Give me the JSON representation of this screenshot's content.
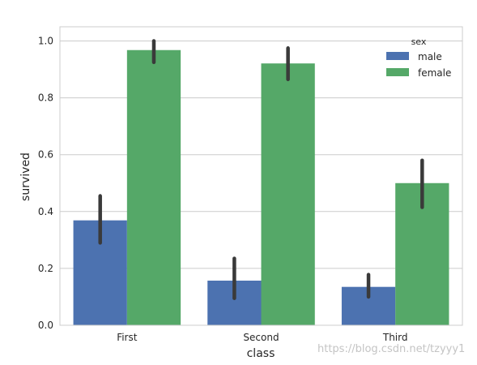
{
  "chart_data": {
    "type": "bar",
    "categories": [
      "First",
      "Second",
      "Third"
    ],
    "series": [
      {
        "name": "male",
        "values": [
          0.369,
          0.157,
          0.135
        ],
        "ci_low": [
          0.29,
          0.095,
          0.1
        ],
        "ci_high": [
          0.455,
          0.235,
          0.178
        ],
        "color": "#4C72B0"
      },
      {
        "name": "female",
        "values": [
          0.968,
          0.921,
          0.5
        ],
        "ci_low": [
          0.925,
          0.865,
          0.415
        ],
        "ci_high": [
          1.0,
          0.975,
          0.58
        ],
        "color": "#55A868"
      }
    ],
    "xlabel": "class",
    "ylabel": "survived",
    "ylim": [
      0,
      1.05
    ],
    "yticks": [
      "0.0",
      "0.2",
      "0.4",
      "0.6",
      "0.8",
      "1.0"
    ],
    "ytick_values": [
      0,
      0.2,
      0.4,
      0.6,
      0.8,
      1.0
    ],
    "legend_title": "sex",
    "legend_position": "top-right",
    "grid": true,
    "errorbar_color": "#3A3A3A"
  },
  "watermark": "https://blog.csdn.net/tzyyy1"
}
